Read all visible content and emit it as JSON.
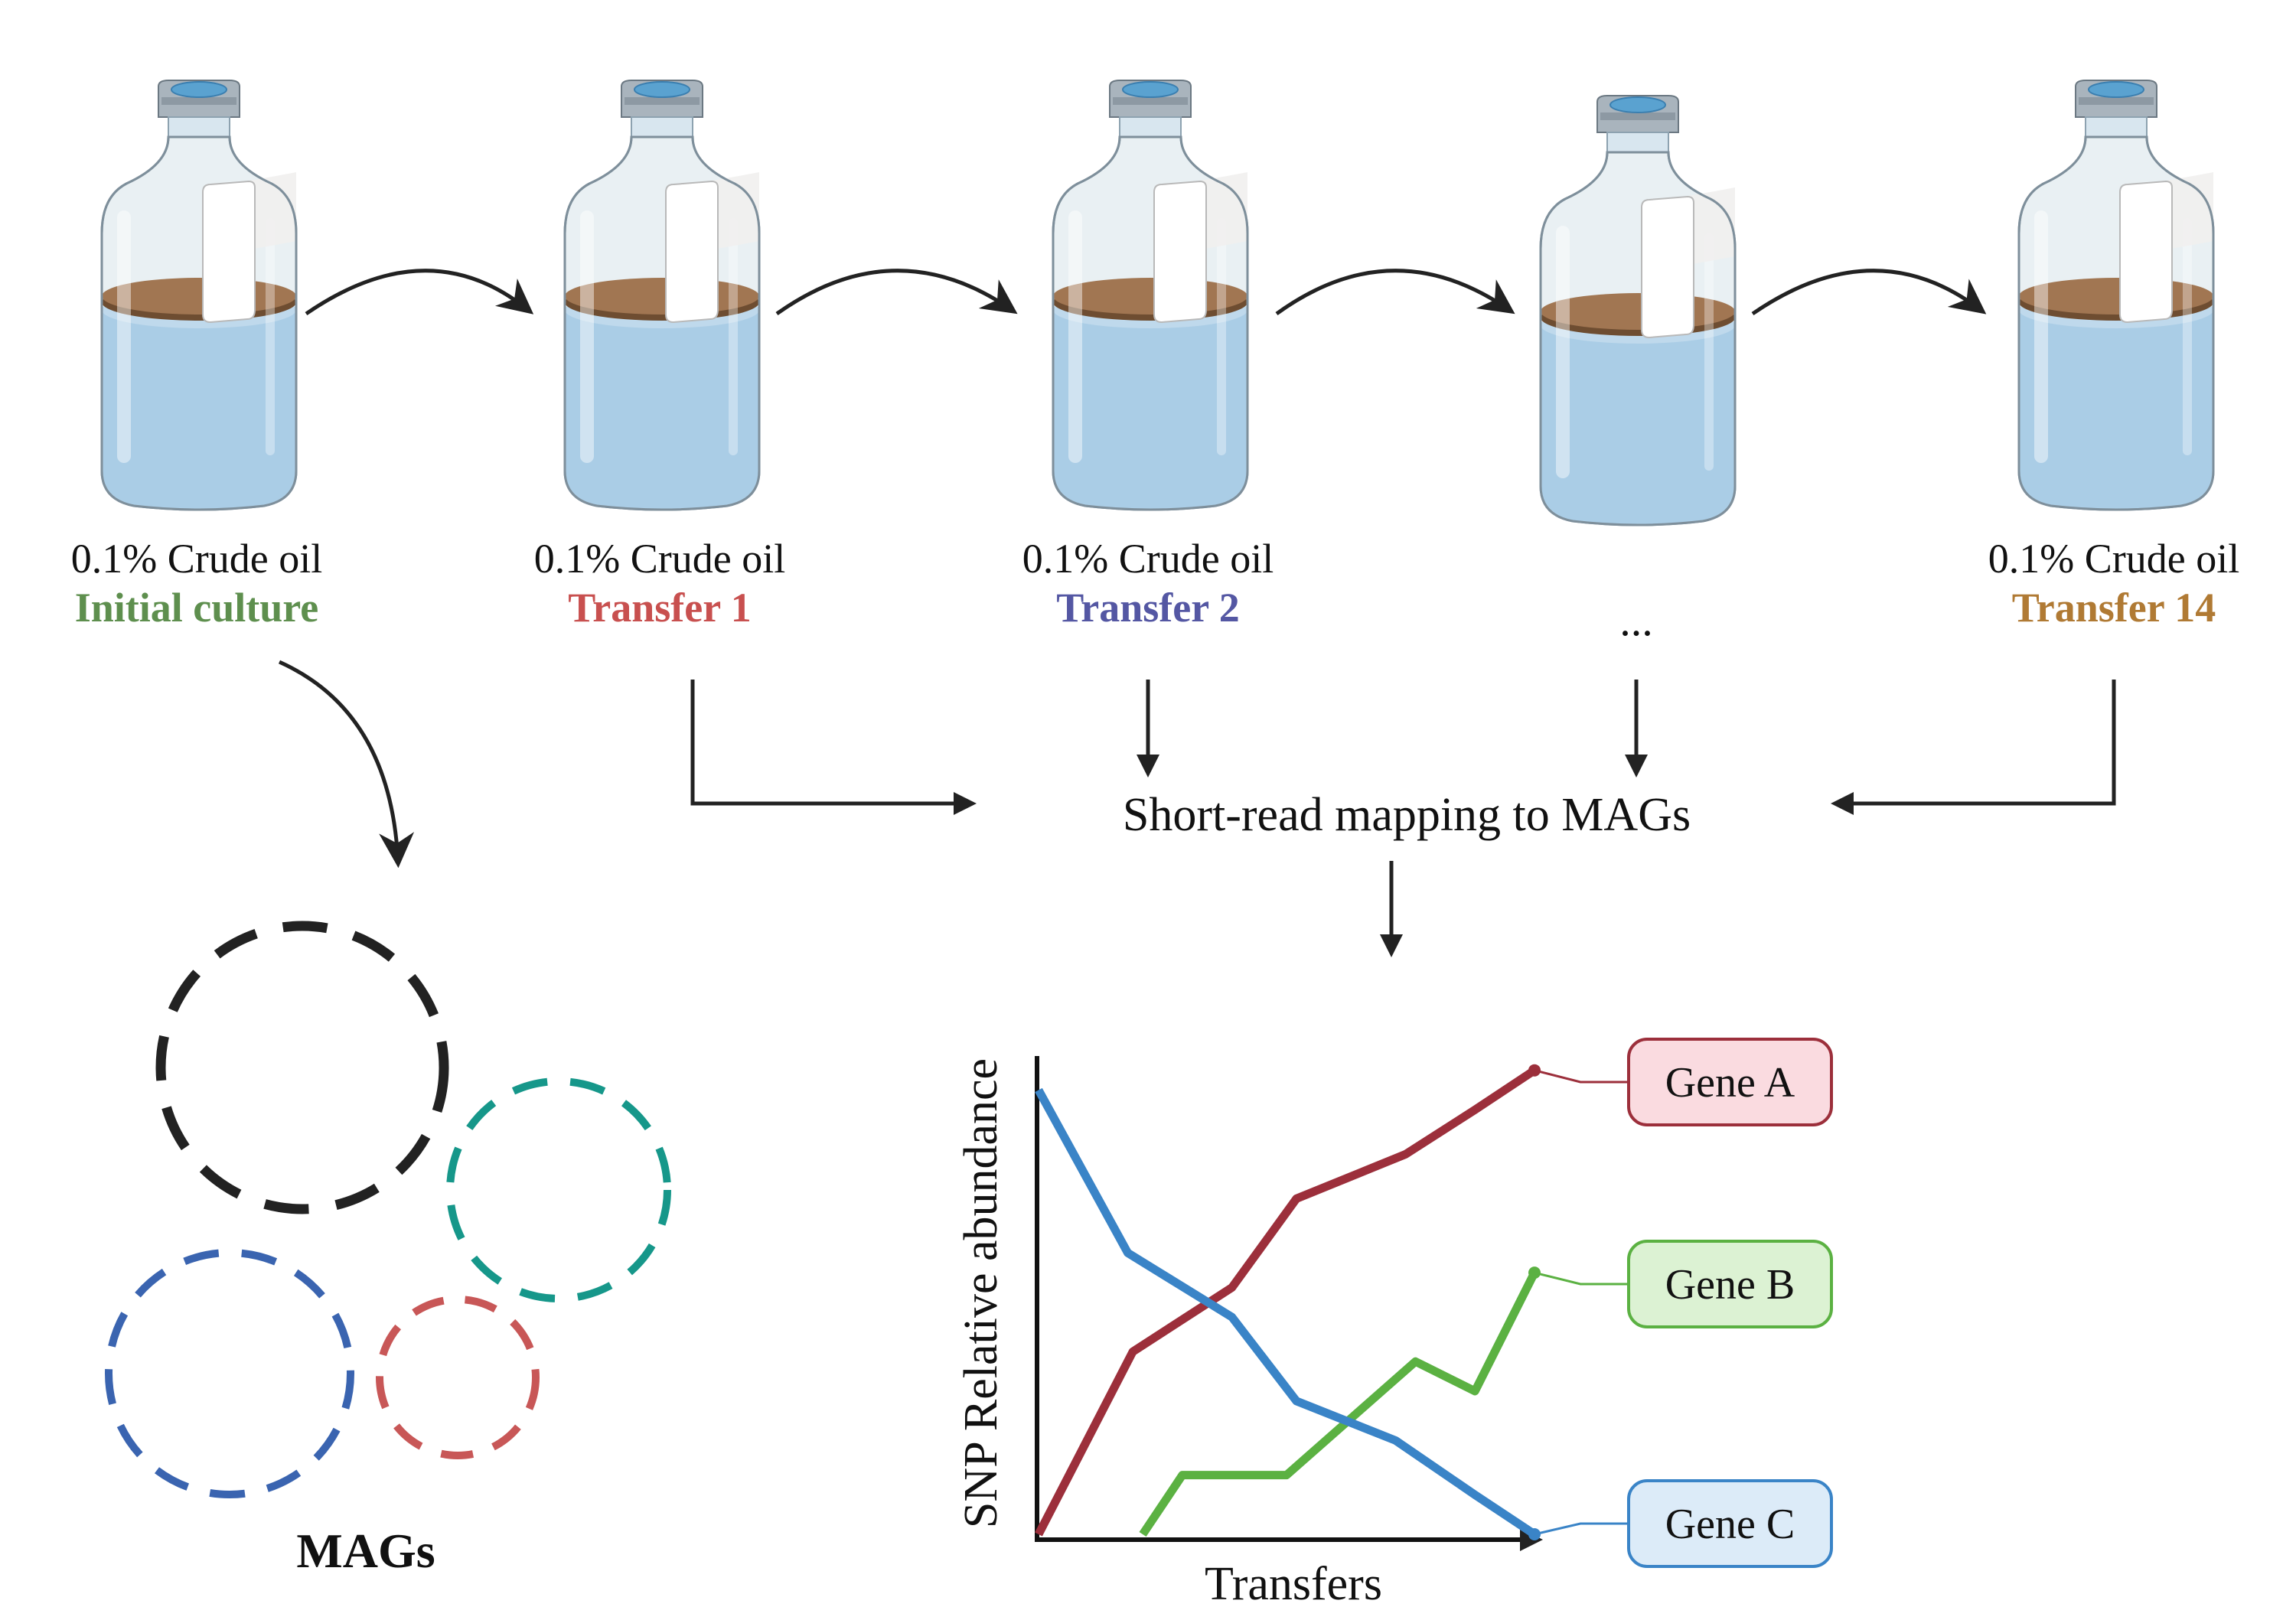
{
  "bottles": [
    {
      "line1": "0.1% Crude oil",
      "line2": "Initial culture",
      "color": "#5e8f4e"
    },
    {
      "line1": "0.1% Crude oil",
      "line2": "Transfer 1",
      "color": "#c8504f"
    },
    {
      "line1": "0.1% Crude oil",
      "line2": "Transfer 2",
      "color": "#5457a3"
    },
    {
      "line1": "",
      "line2": "...",
      "color": "#111111"
    },
    {
      "line1": "0.1% Crude oil",
      "line2": "Transfer 14",
      "color": "#b07a34"
    }
  ],
  "process_label": "Short-read mapping to MAGs",
  "mags_label": "MAGs",
  "mag_colors": [
    "#222222",
    "#16978a",
    "#3a64b0",
    "#c85757"
  ],
  "chart_data": {
    "type": "line",
    "xlabel": "Transfers",
    "ylabel": "SNP Relative abundance",
    "series": [
      {
        "name": "Gene A",
        "color": "#9c2f3b",
        "box_fill": "#fadbe0",
        "points": [
          [
            0,
            0
          ],
          [
            0.19,
            0.37
          ],
          [
            0.39,
            0.5
          ],
          [
            0.52,
            0.68
          ],
          [
            0.74,
            0.77
          ],
          [
            0.88,
            0.86
          ],
          [
            1.0,
            0.94
          ]
        ]
      },
      {
        "name": "Gene B",
        "color": "#5bb142",
        "box_fill": "#dcf2d3",
        "points": [
          [
            0.21,
            0
          ],
          [
            0.29,
            0.12
          ],
          [
            0.5,
            0.12
          ],
          [
            0.76,
            0.35
          ],
          [
            0.88,
            0.29
          ],
          [
            1.0,
            0.53
          ]
        ]
      },
      {
        "name": "Gene C",
        "color": "#3a84c7",
        "box_fill": "#dcebf8",
        "points": [
          [
            0,
            0.9
          ],
          [
            0.18,
            0.57
          ],
          [
            0.39,
            0.44
          ],
          [
            0.52,
            0.27
          ],
          [
            0.72,
            0.19
          ],
          [
            0.88,
            0.08
          ],
          [
            1.0,
            0
          ]
        ]
      }
    ]
  }
}
